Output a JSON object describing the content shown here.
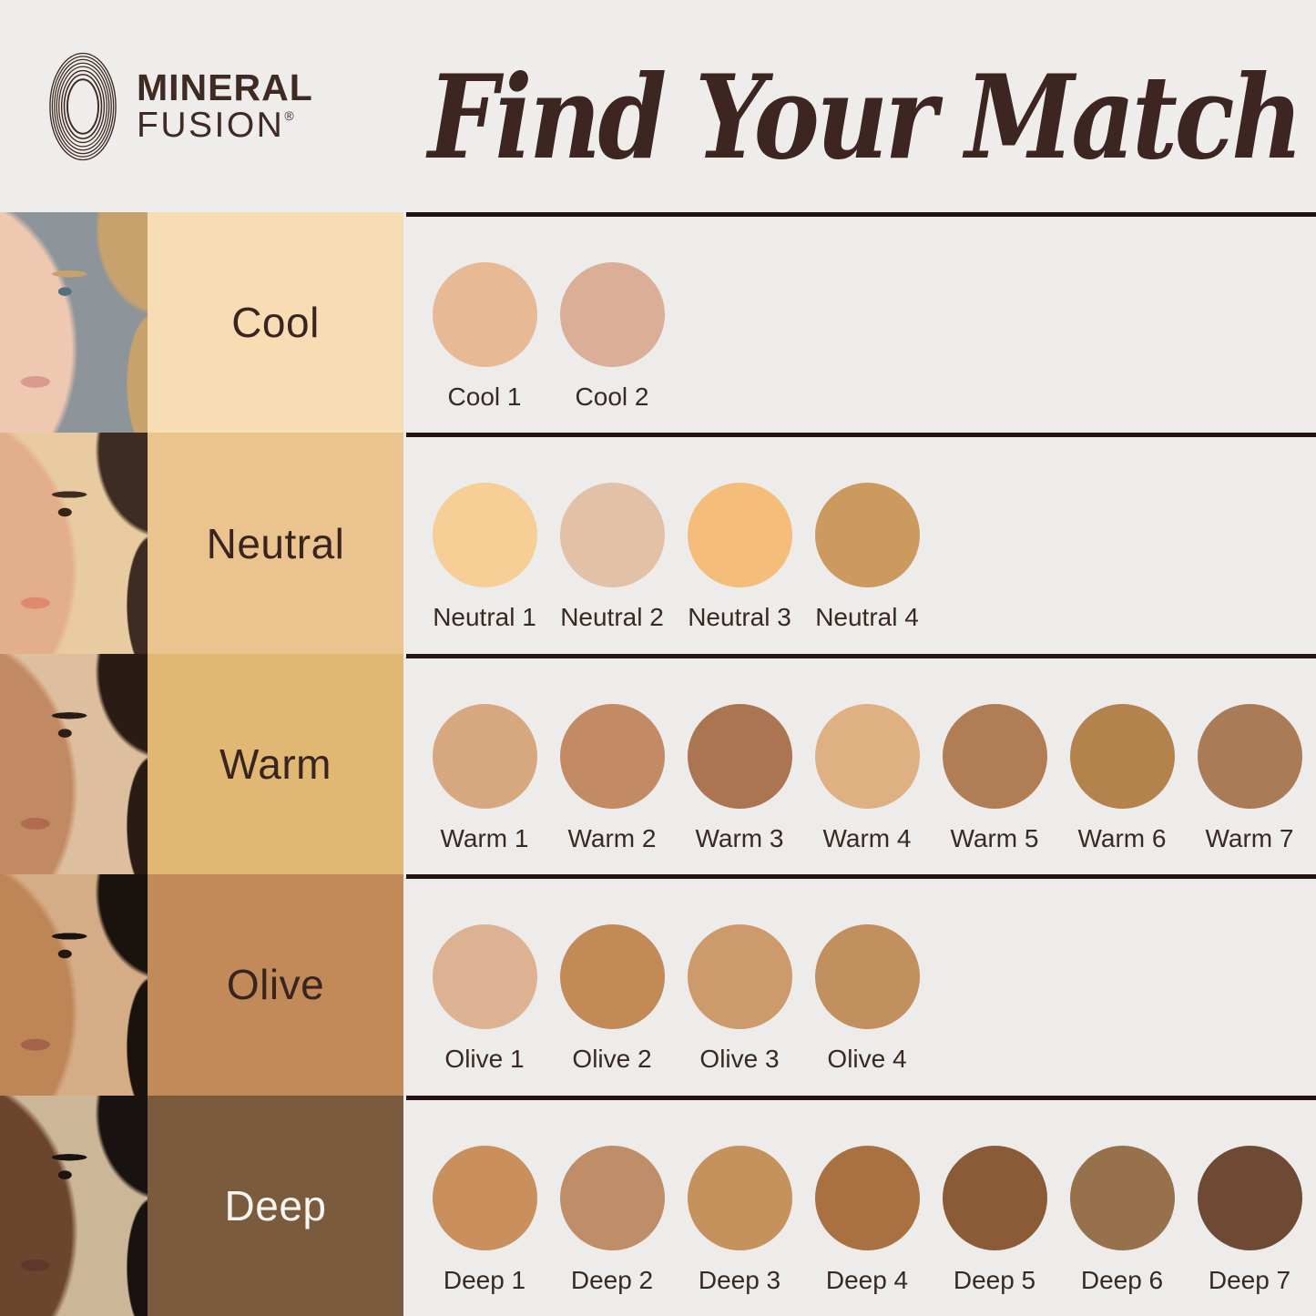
{
  "header": {
    "brand": {
      "name_line1": "MINERAL",
      "name_line2": "FUSION",
      "registered_mark": "®"
    },
    "title": "Find Your Match"
  },
  "colors": {
    "page_background": "#EEEDEB",
    "swatch_area_background": "#EDECEA",
    "divider_line": "#241512",
    "title_text": "#3D2521",
    "brand_text": "#3F2A24",
    "swatch_label_text": "#382923"
  },
  "rows": [
    {
      "label": "Cool",
      "label_background": "#F8DCB3",
      "label_text_color": "#3A2420",
      "swatches": [
        {
          "name": "Cool 1",
          "color": "#E8B995"
        },
        {
          "name": "Cool 2",
          "color": "#DBAE97"
        }
      ]
    },
    {
      "label": "Neutral",
      "label_background": "#EBC38F",
      "label_text_color": "#3A2420",
      "swatches": [
        {
          "name": "Neutral 1",
          "color": "#F6CE96"
        },
        {
          "name": "Neutral 2",
          "color": "#E3C1A6"
        },
        {
          "name": "Neutral 3",
          "color": "#F5BD7A"
        },
        {
          "name": "Neutral 4",
          "color": "#CC9A5F"
        }
      ]
    },
    {
      "label": "Warm",
      "label_background": "#E0B873",
      "label_text_color": "#3A2420",
      "swatches": [
        {
          "name": "Warm 1",
          "color": "#D7A87F"
        },
        {
          "name": "Warm 2",
          "color": "#C28B63"
        },
        {
          "name": "Warm 3",
          "color": "#AA7550"
        },
        {
          "name": "Warm 4",
          "color": "#DFB082"
        },
        {
          "name": "Warm 5",
          "color": "#B17D55"
        },
        {
          "name": "Warm 6",
          "color": "#B4824D"
        },
        {
          "name": "Warm 7",
          "color": "#A97B56"
        }
      ]
    },
    {
      "label": "Olive",
      "label_background": "#C28A59",
      "label_text_color": "#3A2420",
      "swatches": [
        {
          "name": "Olive 1",
          "color": "#DDB293"
        },
        {
          "name": "Olive 2",
          "color": "#C28A57"
        },
        {
          "name": "Olive 3",
          "color": "#CC9A6B"
        },
        {
          "name": "Olive 4",
          "color": "#C28F5E"
        }
      ]
    },
    {
      "label": "Deep",
      "label_background": "#7A5B3E",
      "label_text_color": "#F8F5F0",
      "swatches": [
        {
          "name": "Deep 1",
          "color": "#C98F5C"
        },
        {
          "name": "Deep 2",
          "color": "#BF8E68"
        },
        {
          "name": "Deep 3",
          "color": "#C5915D"
        },
        {
          "name": "Deep 4",
          "color": "#A97141"
        },
        {
          "name": "Deep 5",
          "color": "#8B5A36"
        },
        {
          "name": "Deep 6",
          "color": "#96714B"
        },
        {
          "name": "Deep 7",
          "color": "#6E4933"
        }
      ]
    }
  ]
}
